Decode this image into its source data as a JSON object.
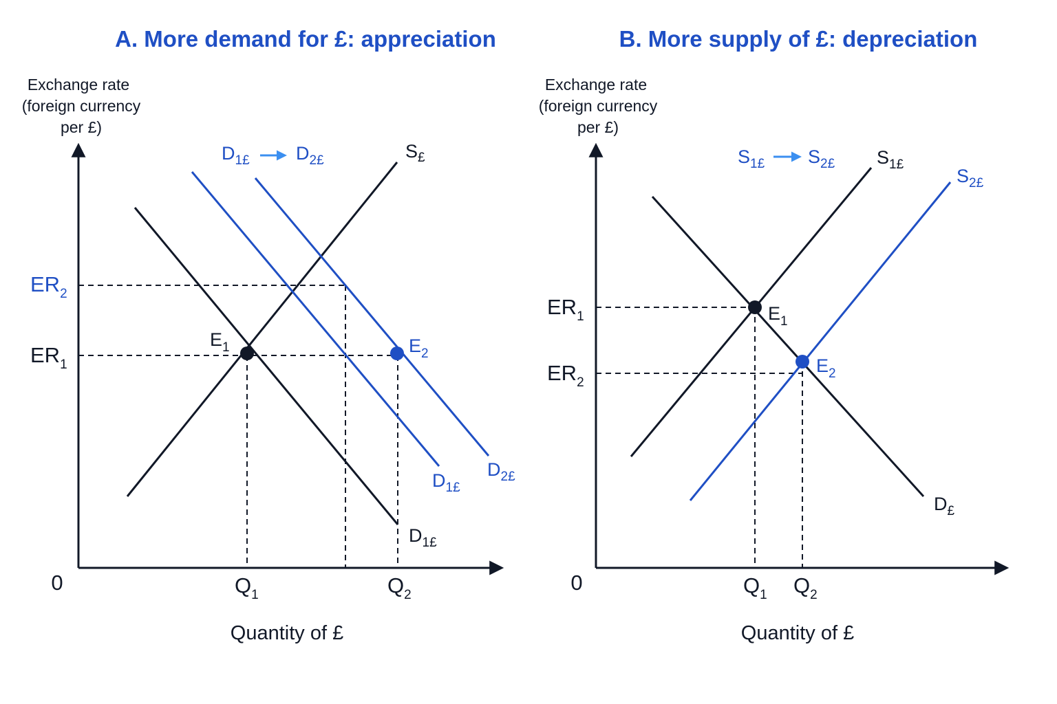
{
  "colors": {
    "ink": "#111827",
    "accent": "#1f4fc4",
    "arrow_light": "#3b8ff0"
  },
  "panel_a": {
    "title": "A. More demand for £: appreciation",
    "y_axis_label": [
      "Exchange rate",
      "(foreign currency",
      "per £)"
    ],
    "x_axis_label": "Quantity of £",
    "origin": "0",
    "shift_legend": {
      "from_main": "D",
      "from_sub": "1£",
      "to_main": "D",
      "to_sub": "2£"
    },
    "curves": {
      "supply": {
        "main": "S",
        "sub": "£"
      },
      "demand1": {
        "main": "D",
        "sub": "1£"
      },
      "demand1_new": {
        "main": "D",
        "sub": "1£"
      },
      "demand2": {
        "main": "D",
        "sub": "2£"
      }
    },
    "points": {
      "e1": {
        "main": "E",
        "sub": "1"
      },
      "e2": {
        "main": "E",
        "sub": "2"
      }
    },
    "ticks": {
      "er1": {
        "main": "ER",
        "sub": "1"
      },
      "er2": {
        "main": "ER",
        "sub": "2"
      },
      "q1": {
        "main": "Q",
        "sub": "1"
      },
      "q2": {
        "main": "Q",
        "sub": "2"
      }
    }
  },
  "panel_b": {
    "title": "B. More supply of £: depreciation",
    "y_axis_label": [
      "Exchange rate",
      "(foreign currency",
      "per £)"
    ],
    "x_axis_label": "Quantity of £",
    "origin": "0",
    "shift_legend": {
      "from_main": "S",
      "from_sub": "1£",
      "to_main": "S",
      "to_sub": "2£"
    },
    "curves": {
      "supply1": {
        "main": "S",
        "sub": "1£"
      },
      "supply2": {
        "main": "S",
        "sub": "2£"
      },
      "demand": {
        "main": "D",
        "sub": "£"
      }
    },
    "points": {
      "e1": {
        "main": "E",
        "sub": "1"
      },
      "e2": {
        "main": "E",
        "sub": "2"
      }
    },
    "ticks": {
      "er1": {
        "main": "ER",
        "sub": "1"
      },
      "er2": {
        "main": "ER",
        "sub": "2"
      },
      "q1": {
        "main": "Q",
        "sub": "1"
      },
      "q2": {
        "main": "Q",
        "sub": "2"
      }
    }
  }
}
